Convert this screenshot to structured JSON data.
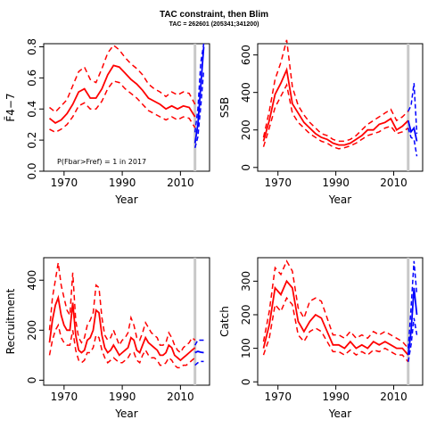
{
  "header": {
    "title": "TAC constraint, then Blim",
    "subtitle": "TAC = 262601 (205341;341200)"
  },
  "colors": {
    "historic": "#ff0000",
    "projection": "#0000ff",
    "marker": "#c8c8c8"
  },
  "chart_data": [
    {
      "type": "line",
      "panel": "fbar",
      "ylabel": "F̄4−7",
      "xlabel": "Year",
      "annotation": "P(Fbar>Fref) = 1  in 2017",
      "xlim": [
        1963,
        2020
      ],
      "ylim": [
        0,
        0.82
      ],
      "yticks": [
        "0.0",
        "0.2",
        "0.4",
        "0.6",
        "0.8"
      ],
      "ytick_values": [
        0,
        0.2,
        0.4,
        0.6,
        0.8
      ],
      "xticks": [
        "1970",
        "1990",
        "2010"
      ],
      "xtick_values": [
        1970,
        1990,
        2010
      ],
      "marker_year": 2015,
      "x": [
        1965,
        1967,
        1969,
        1971,
        1973,
        1975,
        1977,
        1979,
        1981,
        1983,
        1985,
        1987,
        1989,
        1991,
        1993,
        1995,
        1997,
        1999,
        2001,
        2003,
        2005,
        2007,
        2009,
        2011,
        2013,
        2015
      ],
      "series": [
        {
          "name": "median",
          "style": "solid",
          "values": [
            0.34,
            0.31,
            0.33,
            0.37,
            0.43,
            0.51,
            0.53,
            0.47,
            0.47,
            0.53,
            0.62,
            0.68,
            0.67,
            0.63,
            0.59,
            0.56,
            0.52,
            0.47,
            0.45,
            0.43,
            0.4,
            0.42,
            0.4,
            0.42,
            0.41,
            0.35
          ]
        },
        {
          "name": "upper",
          "style": "dashed",
          "values": [
            0.41,
            0.38,
            0.42,
            0.46,
            0.55,
            0.64,
            0.67,
            0.59,
            0.57,
            0.66,
            0.76,
            0.81,
            0.78,
            0.73,
            0.69,
            0.66,
            0.62,
            0.56,
            0.53,
            0.51,
            0.48,
            0.51,
            0.49,
            0.51,
            0.5,
            0.43
          ]
        },
        {
          "name": "lower",
          "style": "dashed",
          "values": [
            0.27,
            0.25,
            0.27,
            0.3,
            0.35,
            0.42,
            0.44,
            0.4,
            0.4,
            0.45,
            0.53,
            0.58,
            0.57,
            0.53,
            0.5,
            0.47,
            0.43,
            0.39,
            0.37,
            0.35,
            0.33,
            0.35,
            0.33,
            0.35,
            0.34,
            0.28
          ]
        }
      ],
      "projection": {
        "x": [
          2015,
          2016,
          2017,
          2018
        ],
        "median": [
          0.18,
          0.3,
          0.55,
          0.8
        ],
        "upper": [
          0.25,
          0.4,
          0.7,
          0.82
        ],
        "lower": [
          0.15,
          0.22,
          0.42,
          0.65
        ]
      }
    },
    {
      "type": "line",
      "panel": "ssb",
      "ylabel": "SSB",
      "xlabel": "Year",
      "xlim": [
        1963,
        2020
      ],
      "ylim": [
        -20,
        660
      ],
      "yticks": [
        "0",
        "200",
        "400",
        "600"
      ],
      "ytick_values": [
        0,
        200,
        400,
        600
      ],
      "xticks": [
        "1970",
        "1990",
        "2010"
      ],
      "xtick_values": [
        1970,
        1990,
        2010
      ],
      "marker_year": 2015,
      "x": [
        1965,
        1967,
        1969,
        1971,
        1973,
        1975,
        1977,
        1979,
        1981,
        1983,
        1985,
        1987,
        1989,
        1991,
        1993,
        1995,
        1997,
        1999,
        2001,
        2003,
        2005,
        2007,
        2009,
        2011,
        2013,
        2015
      ],
      "series": [
        {
          "name": "median",
          "style": "solid",
          "values": [
            140,
            250,
            390,
            450,
            520,
            340,
            290,
            240,
            210,
            180,
            160,
            150,
            130,
            120,
            120,
            130,
            150,
            170,
            200,
            200,
            230,
            240,
            260,
            200,
            220,
            250
          ]
        },
        {
          "name": "upper",
          "style": "dashed",
          "values": [
            160,
            300,
            470,
            560,
            680,
            430,
            330,
            280,
            240,
            210,
            180,
            170,
            150,
            140,
            140,
            150,
            170,
            200,
            230,
            250,
            270,
            290,
            310,
            250,
            270,
            300
          ]
        },
        {
          "name": "lower",
          "style": "dashed",
          "values": [
            110,
            210,
            320,
            380,
            440,
            290,
            240,
            210,
            180,
            160,
            140,
            130,
            110,
            100,
            105,
            115,
            130,
            150,
            170,
            180,
            190,
            210,
            220,
            180,
            190,
            210
          ]
        }
      ],
      "projection": {
        "x": [
          2015,
          2016,
          2017,
          2018
        ],
        "median": [
          250,
          190,
          210,
          140
        ],
        "upper": [
          300,
          330,
          450,
          180
        ],
        "lower": [
          210,
          160,
          150,
          60
        ]
      }
    },
    {
      "type": "line",
      "panel": "recruitment",
      "ylabel": "Recruitment",
      "xlabel": "Year",
      "xlim": [
        1963,
        2020
      ],
      "ylim": [
        -20,
        490
      ],
      "yticks": [
        "0",
        "200",
        "400"
      ],
      "ytick_values": [
        0,
        200,
        400
      ],
      "xticks": [
        "1970",
        "1990",
        "2010"
      ],
      "xtick_values": [
        1970,
        1990,
        2010
      ],
      "marker_year": 2015,
      "x": [
        1965,
        1966,
        1967,
        1968,
        1969,
        1970,
        1971,
        1972,
        1973,
        1974,
        1975,
        1976,
        1977,
        1978,
        1979,
        1980,
        1981,
        1982,
        1983,
        1984,
        1985,
        1986,
        1987,
        1988,
        1989,
        1990,
        1991,
        1992,
        1993,
        1994,
        1995,
        1996,
        1997,
        1998,
        1999,
        2000,
        2001,
        2002,
        2003,
        2004,
        2005,
        2006,
        2007,
        2008,
        2009,
        2010,
        2011,
        2012,
        2013,
        2014,
        2015
      ],
      "series": [
        {
          "name": "median",
          "style": "solid",
          "values": [
            150,
            240,
            300,
            330,
            260,
            220,
            200,
            200,
            310,
            180,
            120,
            110,
            120,
            160,
            170,
            200,
            280,
            270,
            180,
            130,
            110,
            120,
            140,
            120,
            100,
            110,
            120,
            130,
            170,
            160,
            120,
            110,
            140,
            170,
            150,
            140,
            130,
            120,
            100,
            100,
            110,
            140,
            130,
            100,
            90,
            80,
            90,
            100,
            110,
            120,
            130
          ]
        },
        {
          "name": "upper",
          "style": "dashed",
          "values": [
            200,
            330,
            400,
            470,
            380,
            330,
            280,
            260,
            430,
            240,
            170,
            150,
            170,
            220,
            240,
            270,
            380,
            370,
            250,
            180,
            160,
            170,
            200,
            170,
            140,
            160,
            170,
            190,
            250,
            220,
            170,
            160,
            190,
            230,
            210,
            190,
            180,
            170,
            140,
            140,
            150,
            190,
            170,
            140,
            120,
            110,
            130,
            140,
            150,
            170,
            160
          ]
        },
        {
          "name": "lower",
          "style": "dashed",
          "values": [
            100,
            160,
            200,
            220,
            170,
            150,
            140,
            140,
            200,
            120,
            80,
            70,
            80,
            110,
            110,
            130,
            180,
            170,
            120,
            90,
            70,
            80,
            90,
            80,
            70,
            70,
            80,
            90,
            110,
            110,
            80,
            70,
            100,
            120,
            100,
            90,
            90,
            80,
            60,
            60,
            70,
            90,
            80,
            60,
            50,
            50,
            60,
            60,
            70,
            80,
            90
          ]
        }
      ],
      "projection": {
        "x": [
          2015,
          2016,
          2017,
          2018
        ],
        "median": [
          110,
          115,
          112,
          110
        ],
        "upper": [
          140,
          160,
          160,
          160
        ],
        "lower": [
          60,
          70,
          75,
          75
        ]
      }
    },
    {
      "type": "line",
      "panel": "catch",
      "ylabel": "Catch",
      "xlabel": "Year",
      "xlim": [
        1963,
        2020
      ],
      "ylim": [
        -10,
        370
      ],
      "yticks": [
        "0",
        "100",
        "200",
        "300"
      ],
      "ytick_values": [
        0,
        100,
        200,
        300
      ],
      "xticks": [
        "1970",
        "1990",
        "2010"
      ],
      "xtick_values": [
        1970,
        1990,
        2010
      ],
      "marker_year": 2015,
      "x": [
        1965,
        1967,
        1969,
        1971,
        1973,
        1975,
        1977,
        1979,
        1981,
        1983,
        1985,
        1987,
        1989,
        1991,
        1993,
        1995,
        1997,
        1999,
        2001,
        2003,
        2005,
        2007,
        2009,
        2011,
        2013,
        2015
      ],
      "series": [
        {
          "name": "median",
          "style": "solid",
          "values": [
            100,
            170,
            280,
            260,
            300,
            280,
            180,
            150,
            180,
            200,
            190,
            150,
            110,
            110,
            100,
            120,
            100,
            110,
            100,
            120,
            110,
            120,
            110,
            100,
            100,
            80
          ]
        },
        {
          "name": "upper",
          "style": "dashed",
          "values": [
            120,
            210,
            340,
            320,
            360,
            330,
            220,
            190,
            240,
            250,
            240,
            190,
            140,
            140,
            130,
            150,
            130,
            140,
            130,
            150,
            140,
            150,
            140,
            130,
            120,
            100
          ]
        },
        {
          "name": "lower",
          "style": "dashed",
          "values": [
            80,
            130,
            230,
            210,
            250,
            230,
            140,
            120,
            150,
            160,
            150,
            120,
            90,
            90,
            80,
            95,
            80,
            90,
            80,
            95,
            90,
            100,
            90,
            80,
            80,
            60
          ]
        }
      ],
      "projection": {
        "x": [
          2015,
          2016,
          2017,
          2018
        ],
        "median": [
          80,
          150,
          280,
          200
        ],
        "upper": [
          100,
          220,
          360,
          260
        ],
        "lower": [
          60,
          110,
          190,
          140
        ]
      }
    }
  ]
}
